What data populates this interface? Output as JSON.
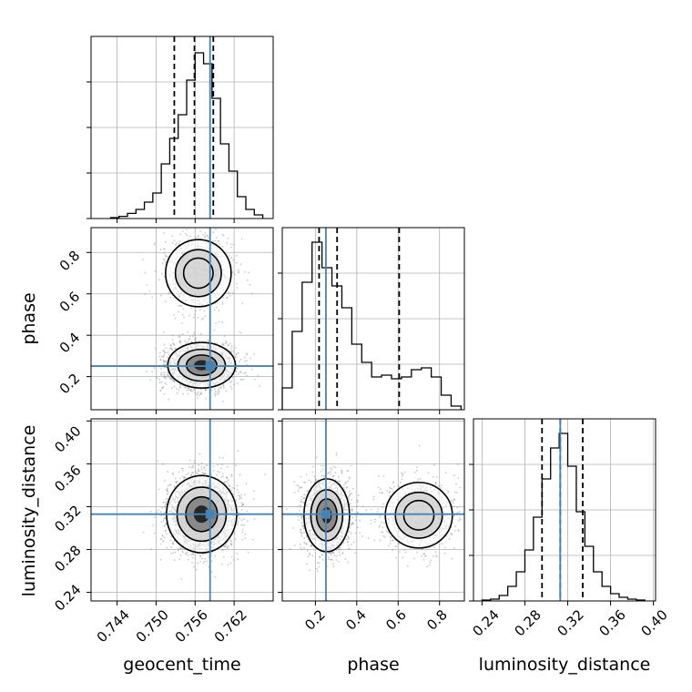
{
  "chart_data": {
    "type": "corner",
    "parameters": [
      "geocent_time",
      "phase",
      "luminosity_distance"
    ],
    "axis_labels": {
      "x": [
        "geocent_time",
        "phase",
        "luminosity_distance"
      ],
      "y_row2": "phase",
      "y_row3": "luminosity_distance"
    },
    "ranges": {
      "geocent_time": [
        0.74,
        0.768
      ],
      "phase": [
        0.04,
        0.92
      ],
      "luminosity_distance": [
        0.232,
        0.402
      ]
    },
    "ticks": {
      "geocent_time": [
        0.744,
        0.75,
        0.756,
        0.762
      ],
      "phase": [
        0.2,
        0.4,
        0.6,
        0.8
      ],
      "luminosity_distance": [
        0.24,
        0.28,
        0.32,
        0.36,
        0.4
      ]
    },
    "tick_labels": {
      "geocent_time": [
        "0.744",
        "0.750",
        "0.756",
        "0.762"
      ],
      "phase": [
        "0.2",
        "0.4",
        "0.6",
        "0.8"
      ],
      "luminosity_distance": [
        "0.24",
        "0.28",
        "0.32",
        "0.36",
        "0.40"
      ]
    },
    "truths": {
      "geocent_time": 0.7583,
      "phase": 0.251,
      "luminosity_distance": 0.313
    },
    "quantiles": {
      "geocent_time": [
        0.7528,
        0.7559,
        0.7588
      ],
      "phase": [
        0.218,
        0.305,
        0.605
      ],
      "luminosity_distance": [
        0.296,
        0.313,
        0.334
      ]
    },
    "histograms": {
      "geocent_time": {
        "edges": [
          0.743,
          0.7443,
          0.7456,
          0.7469,
          0.7482,
          0.7495,
          0.7508,
          0.7521,
          0.7534,
          0.7547,
          0.756,
          0.7573,
          0.7586,
          0.7599,
          0.7612,
          0.7625,
          0.7638,
          0.7651,
          0.7664
        ],
        "counts": [
          0.005,
          0.012,
          0.028,
          0.05,
          0.09,
          0.14,
          0.3,
          0.44,
          0.57,
          0.76,
          0.91,
          0.85,
          0.66,
          0.41,
          0.26,
          0.12,
          0.05,
          0.02
        ]
      },
      "phase": {
        "edges": [
          0.04,
          0.088,
          0.136,
          0.184,
          0.232,
          0.28,
          0.328,
          0.376,
          0.424,
          0.472,
          0.52,
          0.568,
          0.616,
          0.664,
          0.712,
          0.76,
          0.808,
          0.856,
          0.904
        ],
        "counts": [
          0.12,
          0.43,
          0.7,
          0.92,
          0.78,
          0.68,
          0.56,
          0.36,
          0.26,
          0.18,
          0.19,
          0.17,
          0.18,
          0.22,
          0.23,
          0.18,
          0.08,
          0.02
        ]
      },
      "luminosity_distance": {
        "edges": [
          0.24,
          0.248,
          0.256,
          0.264,
          0.272,
          0.28,
          0.288,
          0.296,
          0.304,
          0.312,
          0.32,
          0.328,
          0.336,
          0.344,
          0.352,
          0.36,
          0.368,
          0.376,
          0.384,
          0.392
        ],
        "counts": [
          0.005,
          0.01,
          0.03,
          0.08,
          0.16,
          0.28,
          0.46,
          0.67,
          0.84,
          0.92,
          0.74,
          0.49,
          0.3,
          0.16,
          0.08,
          0.04,
          0.02,
          0.01,
          0.005
        ]
      }
    },
    "scatter_model": {
      "phase_vs_geocent_time": {
        "components": [
          {
            "weight": 0.72,
            "mean": [
              0.757,
              0.255
            ],
            "sd": [
              0.0026,
              0.055
            ]
          },
          {
            "weight": 0.28,
            "mean": [
              0.7565,
              0.7
            ],
            "sd": [
              0.0028,
              0.09
            ]
          }
        ]
      },
      "luminosity_distance_vs_geocent_time": {
        "components": [
          {
            "weight": 1.0,
            "mean": [
              0.757,
              0.313
            ],
            "sd": [
              0.0027,
              0.018
            ]
          }
        ]
      },
      "luminosity_distance_vs_phase": {
        "components": [
          {
            "weight": 0.72,
            "mean": [
              0.255,
              0.312
            ],
            "sd": [
              0.055,
              0.017
            ]
          },
          {
            "weight": 0.28,
            "mean": [
              0.7,
              0.312
            ],
            "sd": [
              0.09,
              0.017
            ]
          }
        ]
      }
    },
    "grid": true,
    "colors": {
      "truth": "#4682b4",
      "hist": "#000000",
      "points": "#8a8a8a",
      "grid": "#b0b0b0"
    }
  }
}
